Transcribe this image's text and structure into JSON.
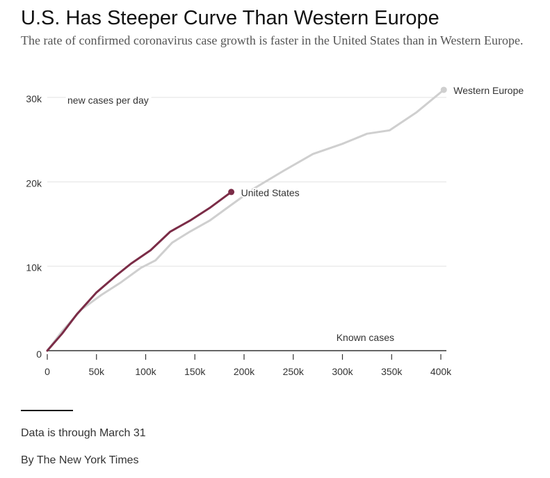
{
  "header": {
    "title": "U.S. Has Steeper Curve Than Western Europe",
    "subtitle": "The rate of confirmed coronavirus case growth is faster in the United States than in Western Europe."
  },
  "footer": {
    "note": "Data is through March 31",
    "credit": "By The New York Times"
  },
  "colors": {
    "us": "#7b2c47",
    "europe": "#cfcfcf",
    "grid": "#e2e2e2",
    "axis": "#333333"
  },
  "chart_data": {
    "type": "line",
    "xlabel": "Known cases",
    "ylabel": "new cases per day",
    "xlim": [
      0,
      400000
    ],
    "ylim": [
      0,
      30000
    ],
    "x_ticks": [
      0,
      50000,
      100000,
      150000,
      200000,
      250000,
      300000,
      350000,
      400000
    ],
    "x_tick_labels": [
      "0",
      "50k",
      "100k",
      "150k",
      "200k",
      "250k",
      "300k",
      "350k",
      "400k"
    ],
    "y_ticks": [
      0,
      10000,
      20000,
      30000
    ],
    "y_tick_labels": [
      "0",
      "10k",
      "20k",
      "30k"
    ],
    "grid": true,
    "series": [
      {
        "name": "Western Europe",
        "key": "europe",
        "points": [
          [
            0,
            0
          ],
          [
            15000,
            2300
          ],
          [
            35000,
            4900
          ],
          [
            55000,
            6600
          ],
          [
            75000,
            8100
          ],
          [
            95000,
            9800
          ],
          [
            110000,
            10700
          ],
          [
            127000,
            12800
          ],
          [
            145000,
            14100
          ],
          [
            165000,
            15400
          ],
          [
            185000,
            17100
          ],
          [
            210000,
            19200
          ],
          [
            240000,
            21300
          ],
          [
            270000,
            23300
          ],
          [
            300000,
            24500
          ],
          [
            325000,
            25700
          ],
          [
            348000,
            26100
          ],
          [
            375000,
            28200
          ],
          [
            403000,
            30900
          ]
        ]
      },
      {
        "name": "United States",
        "key": "us",
        "points": [
          [
            0,
            0
          ],
          [
            15000,
            2000
          ],
          [
            30000,
            4300
          ],
          [
            50000,
            6900
          ],
          [
            70000,
            8900
          ],
          [
            85000,
            10300
          ],
          [
            105000,
            11900
          ],
          [
            125000,
            14100
          ],
          [
            145000,
            15400
          ],
          [
            165000,
            16900
          ],
          [
            187000,
            18800
          ]
        ]
      }
    ]
  }
}
